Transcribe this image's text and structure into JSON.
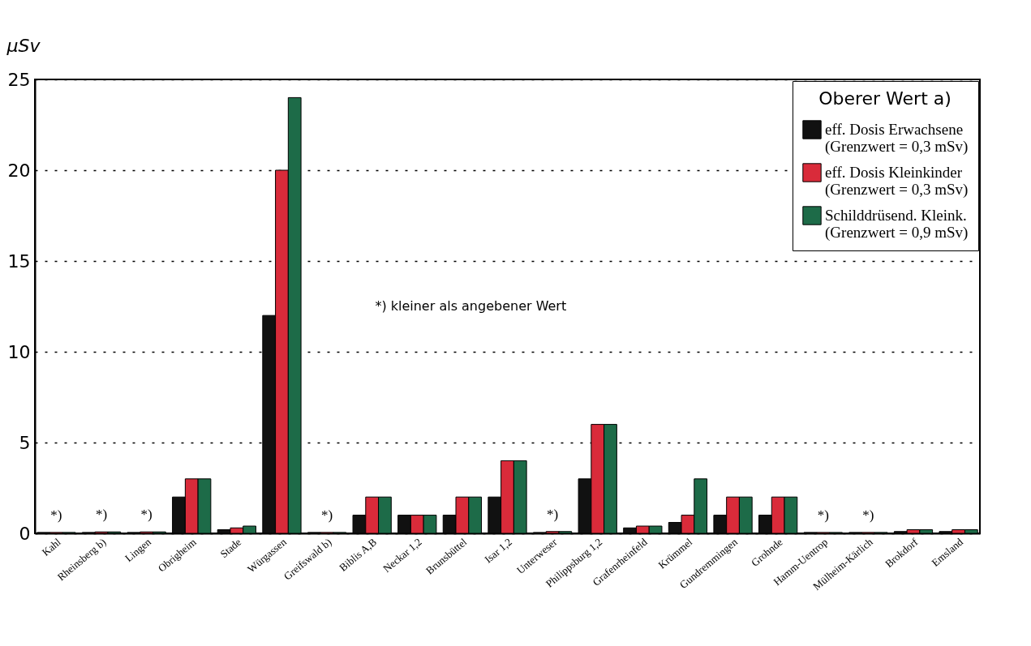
{
  "chart_data": {
    "type": "bar",
    "ylabel": "µSv",
    "legend_title": "Oberer Wert a)",
    "categories": [
      "Kahl",
      "Rheinsberg b)",
      "Lingen",
      "Obrigheim",
      "Stade",
      "Würgassen",
      "Greifswald b)",
      "Biblis A,B",
      "Neckar 1,2",
      "Brunsbüttel",
      "Isar 1,2",
      "Unterweser",
      "Philippsburg 1,2",
      "Grafenrheinfeld",
      "Krümmel",
      "Gundremmingen",
      "Grohnde",
      "Hamm-Uentrop",
      "Mülheim-Kärlich",
      "Brokdorf",
      "Emsland"
    ],
    "series": [
      {
        "name": "eff. Dosis Erwachsene\n(Grenzwert = 0,3 mSv)",
        "color": "#111111",
        "values": [
          0.05,
          0.05,
          0.05,
          2,
          0.2,
          12,
          0.05,
          1,
          1,
          1,
          2,
          0.05,
          3,
          0.3,
          0.6,
          1,
          1,
          0.05,
          0.05,
          0.1,
          0.1
        ]
      },
      {
        "name": "eff. Dosis Kleinkinder\n(Grenzwert = 0,3 mSv)",
        "color": "#d92b3a",
        "values": [
          0.05,
          0.08,
          0.08,
          3,
          0.3,
          20,
          0.05,
          2,
          1,
          2,
          4,
          0.1,
          6,
          0.4,
          1,
          2,
          2,
          0.05,
          0.05,
          0.2,
          0.2
        ]
      },
      {
        "name": "Schilddrüsend. Kleink.\n(Grenzwert = 0,9 mSv)",
        "color": "#1d6b48",
        "values": [
          0.05,
          0.08,
          0.08,
          3,
          0.4,
          24,
          0.05,
          2,
          1,
          2,
          4,
          0.1,
          6,
          0.4,
          3,
          2,
          2,
          0.05,
          0.05,
          0.2,
          0.2
        ]
      }
    ],
    "ylim": [
      0,
      25
    ],
    "yticks": [
      0,
      5,
      10,
      15,
      20,
      25
    ],
    "grid": "y",
    "legend": "top right",
    "annotations": [
      "*) kleiner als angebener Wert",
      {
        "text": "*)",
        "x": "Kahl",
        "y": 0.05
      },
      {
        "text": "*)",
        "x": "Rheinsberg b)",
        "y": 0.08
      },
      {
        "text": "*)",
        "x": "Lingen",
        "y": 0.08
      },
      {
        "text": "*)",
        "x": "Greifswald b)",
        "y": 0.05
      },
      {
        "text": "*)",
        "x": "Unterweser",
        "y": 0.1
      },
      {
        "text": "*)",
        "x": "Hamm-Uentrop",
        "y": 0.05
      },
      {
        "text": "*)",
        "x": "Mülheim-Kärlich",
        "y": 0.05
      }
    ]
  }
}
